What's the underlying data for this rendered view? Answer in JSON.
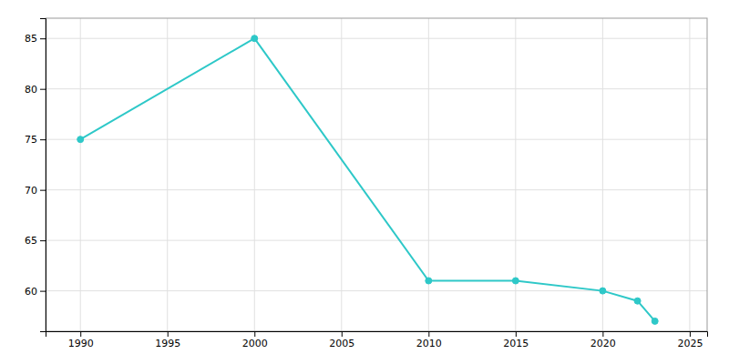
{
  "chart_data": {
    "type": "line",
    "x": [
      1990,
      2000,
      2010,
      2015,
      2020,
      2022,
      2023
    ],
    "values": [
      75,
      85,
      61,
      61,
      60,
      59,
      57
    ],
    "color": "#2ec8c8",
    "marker": "circle",
    "xlim": [
      1988,
      2026
    ],
    "ylim": [
      56,
      87
    ],
    "xticks": [
      1990,
      1995,
      2000,
      2005,
      2010,
      2015,
      2020,
      2025
    ],
    "yticks": [
      60,
      65,
      70,
      75,
      80,
      85
    ],
    "grid": true
  }
}
